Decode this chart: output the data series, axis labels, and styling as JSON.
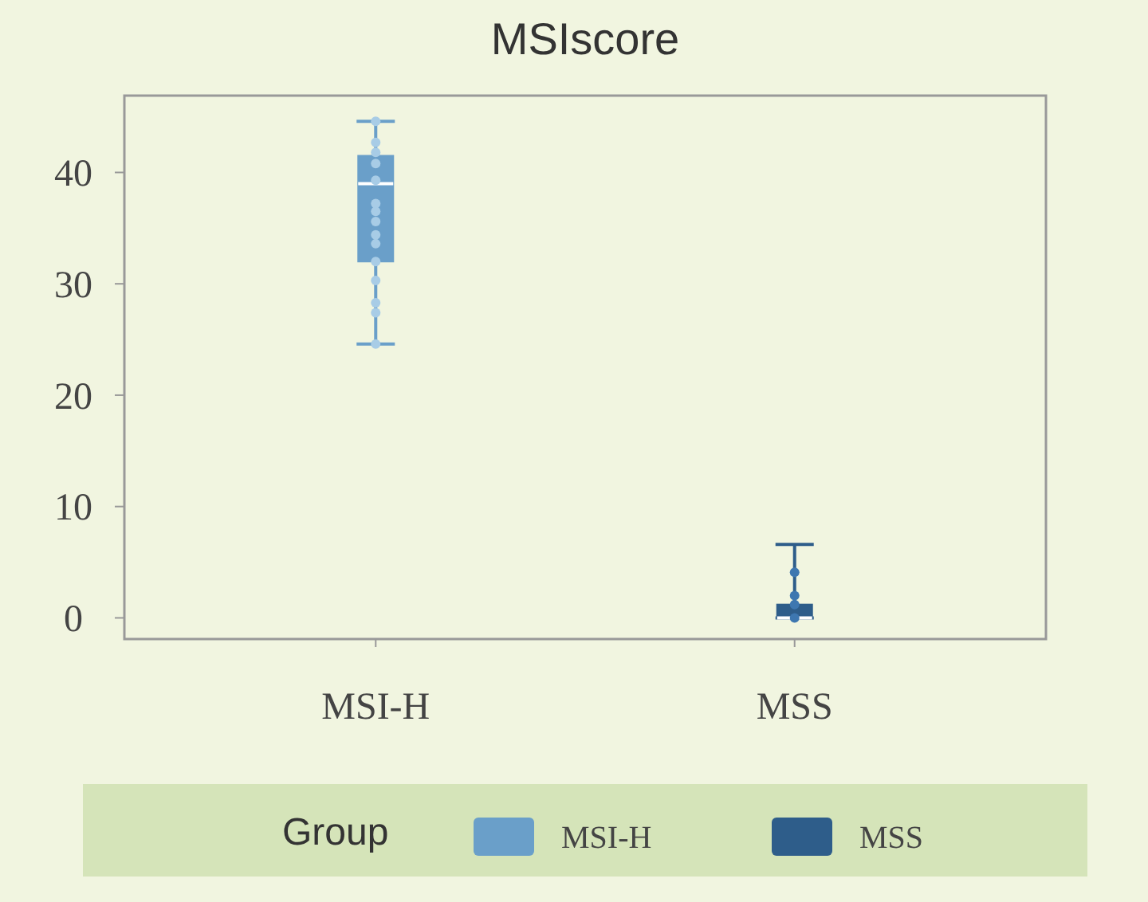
{
  "chart_data": {
    "type": "box",
    "title": "MSIscore",
    "categories": [
      "MSI-H",
      "MSS"
    ],
    "ylim": [
      -1.9,
      46.9
    ],
    "yticks": [
      0,
      10,
      20,
      30,
      40
    ],
    "legend": "bottom",
    "legend_title": "Group",
    "grid": false,
    "series": [
      {
        "name": "MSI-H",
        "color": "#6a9fc9",
        "boxes": [
          {
            "low": 24.6,
            "q1": 32,
            "median": 39,
            "q3": 41.5,
            "high": 44.6
          },
          null
        ]
      },
      {
        "name": "MSS",
        "color": "#2e5d8a",
        "boxes": [
          null,
          {
            "low": 0,
            "q1": 0,
            "median": 0,
            "q3": 1.2,
            "high": 6.6
          }
        ]
      },
      {
        "type": "scatter",
        "color": "#a8cce6",
        "x": [
          "MSI-H",
          "MSI-H",
          "MSI-H",
          "MSI-H",
          "MSI-H",
          "MSI-H",
          "MSI-H",
          "MSI-H",
          "MSI-H",
          "MSI-H",
          "MSI-H",
          "MSI-H",
          "MSI-H",
          "MSI-H",
          "MSI-H"
        ],
        "values": [
          44.6,
          42.7,
          41.8,
          40.8,
          39.3,
          37.2,
          36.5,
          35.6,
          34.4,
          33.6,
          32.0,
          30.3,
          28.3,
          27.4,
          24.6
        ]
      },
      {
        "type": "scatter",
        "color": "#3e77b0",
        "x": [
          "MSS",
          "MSS",
          "MSS",
          "MSS"
        ],
        "values": [
          0,
          1.2,
          2.0,
          4.1
        ]
      }
    ]
  }
}
